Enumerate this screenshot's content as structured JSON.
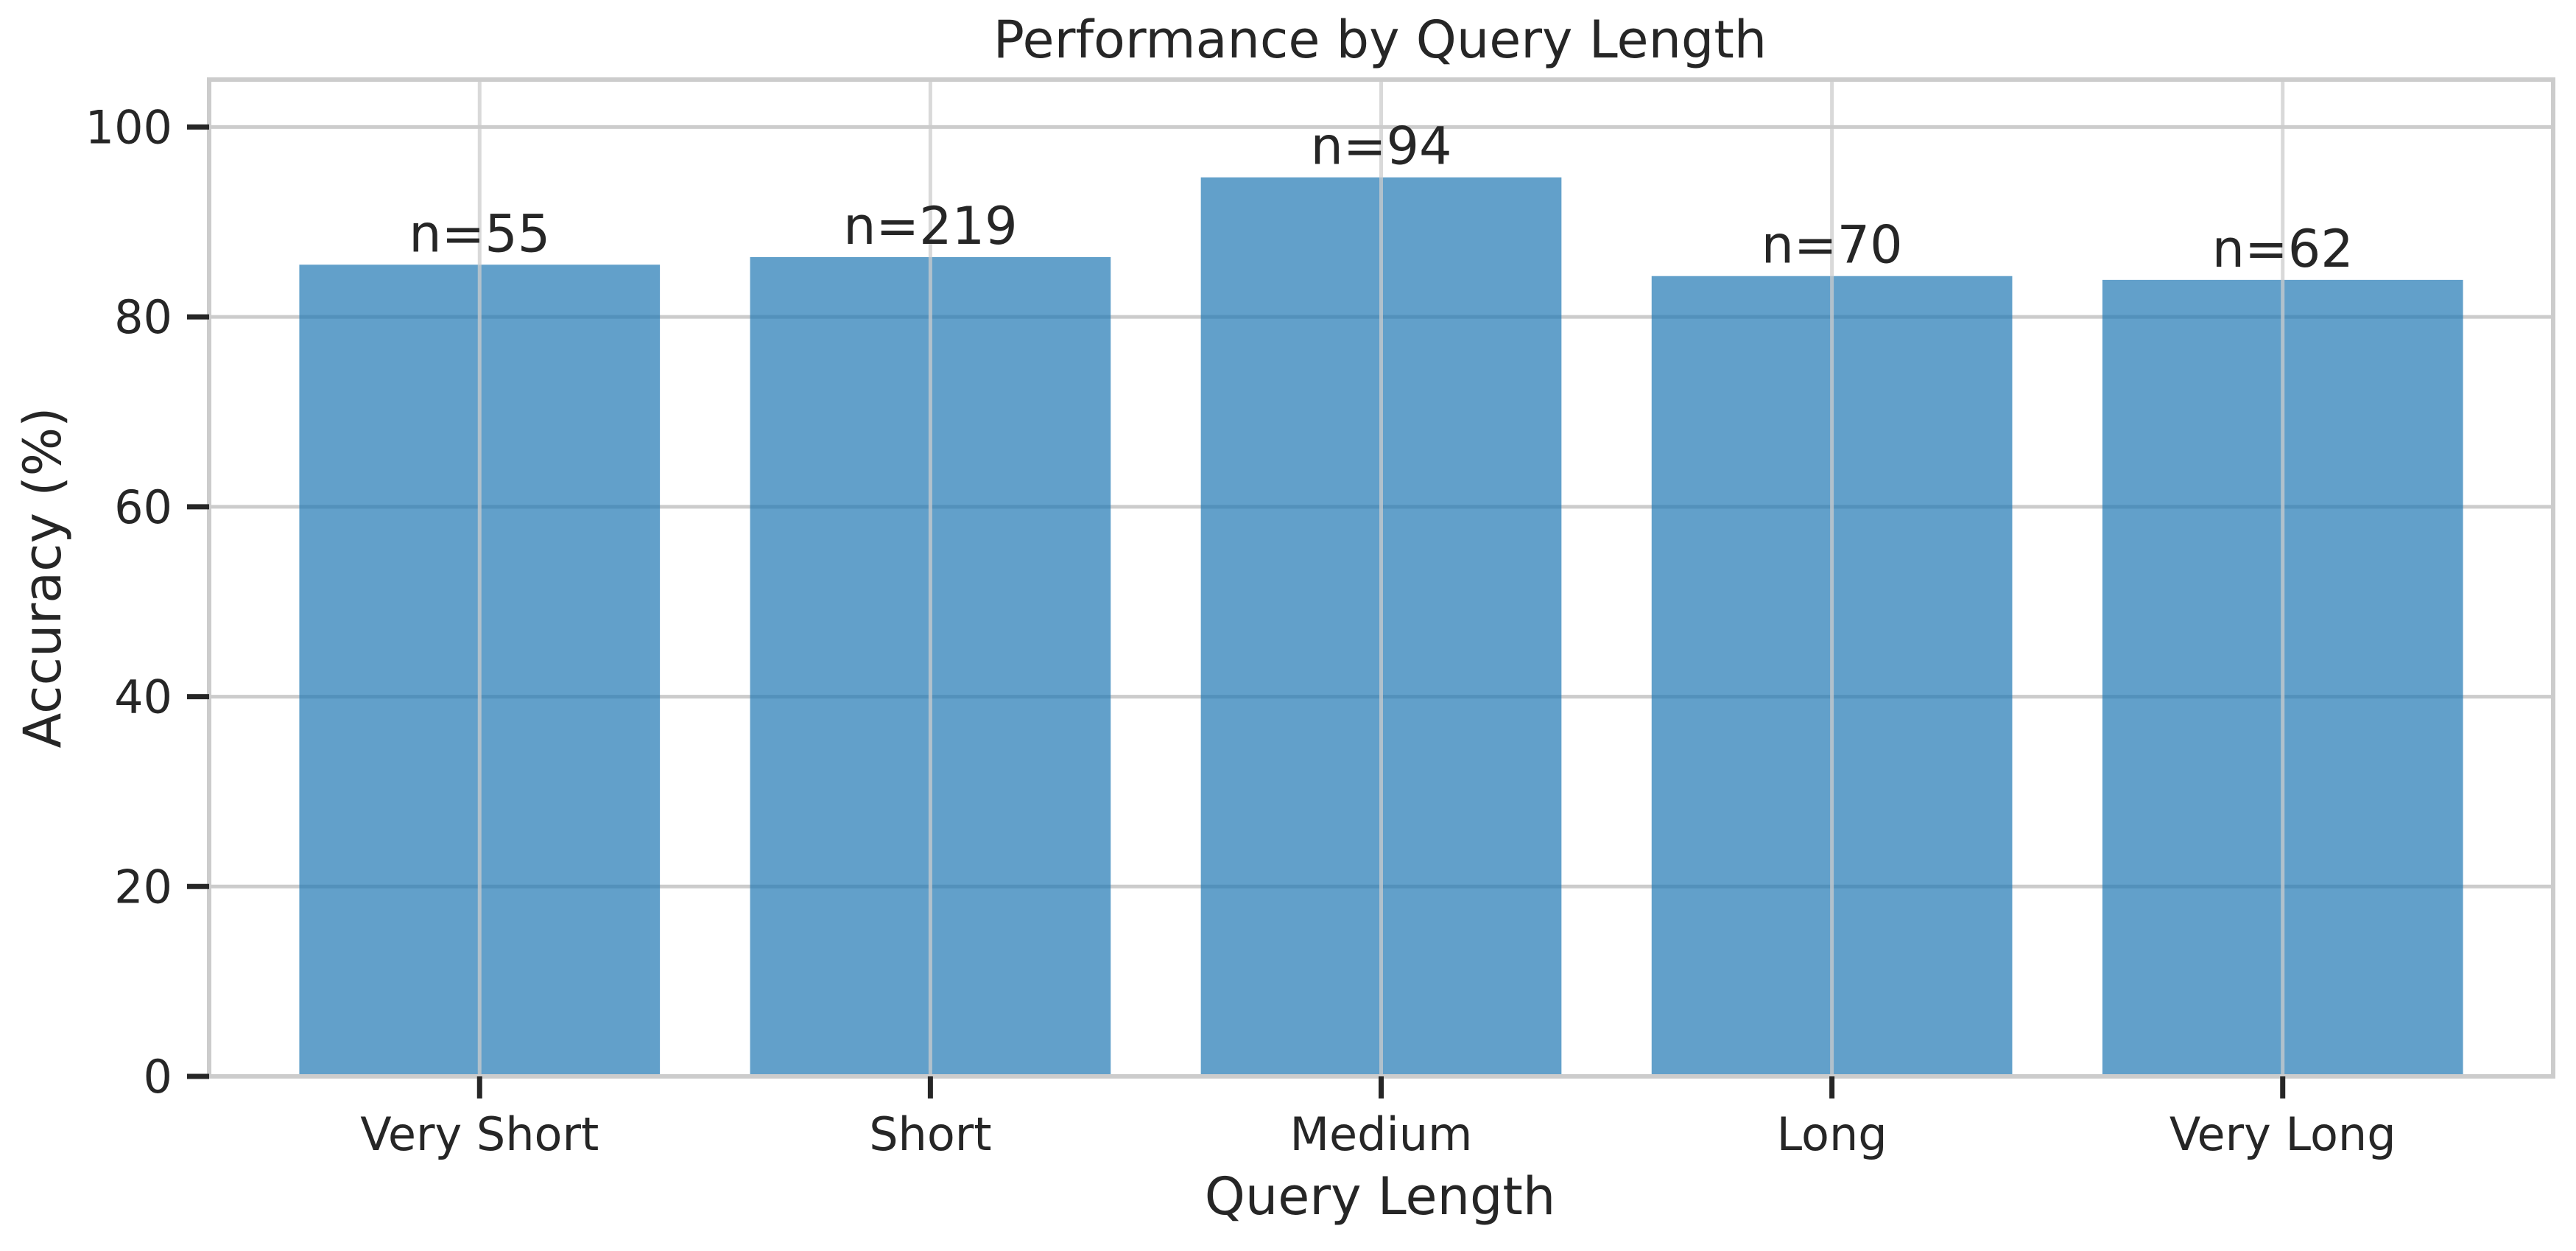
{
  "chart_data": {
    "type": "bar",
    "title": "Performance by Query Length",
    "xlabel": "Query Length",
    "ylabel": "Accuracy (%)",
    "categories": [
      "Very Short",
      "Short",
      "Medium",
      "Long",
      "Very Long"
    ],
    "values": [
      85.5,
      86.3,
      94.7,
      84.3,
      83.9
    ],
    "annotations": [
      "n=55",
      "n=219",
      "n=94",
      "n=70",
      "n=62"
    ],
    "ylim": [
      0,
      105
    ],
    "yticks": [
      0,
      20,
      40,
      60,
      80,
      100
    ],
    "ytick_labels": [
      "0",
      "20",
      "40",
      "60",
      "80",
      "100"
    ],
    "grid": true,
    "legend": "none",
    "colors": {
      "bar": "#1f77b4",
      "bar_opacity": 0.7,
      "grid": "#cccccc",
      "text": "#262626"
    }
  }
}
